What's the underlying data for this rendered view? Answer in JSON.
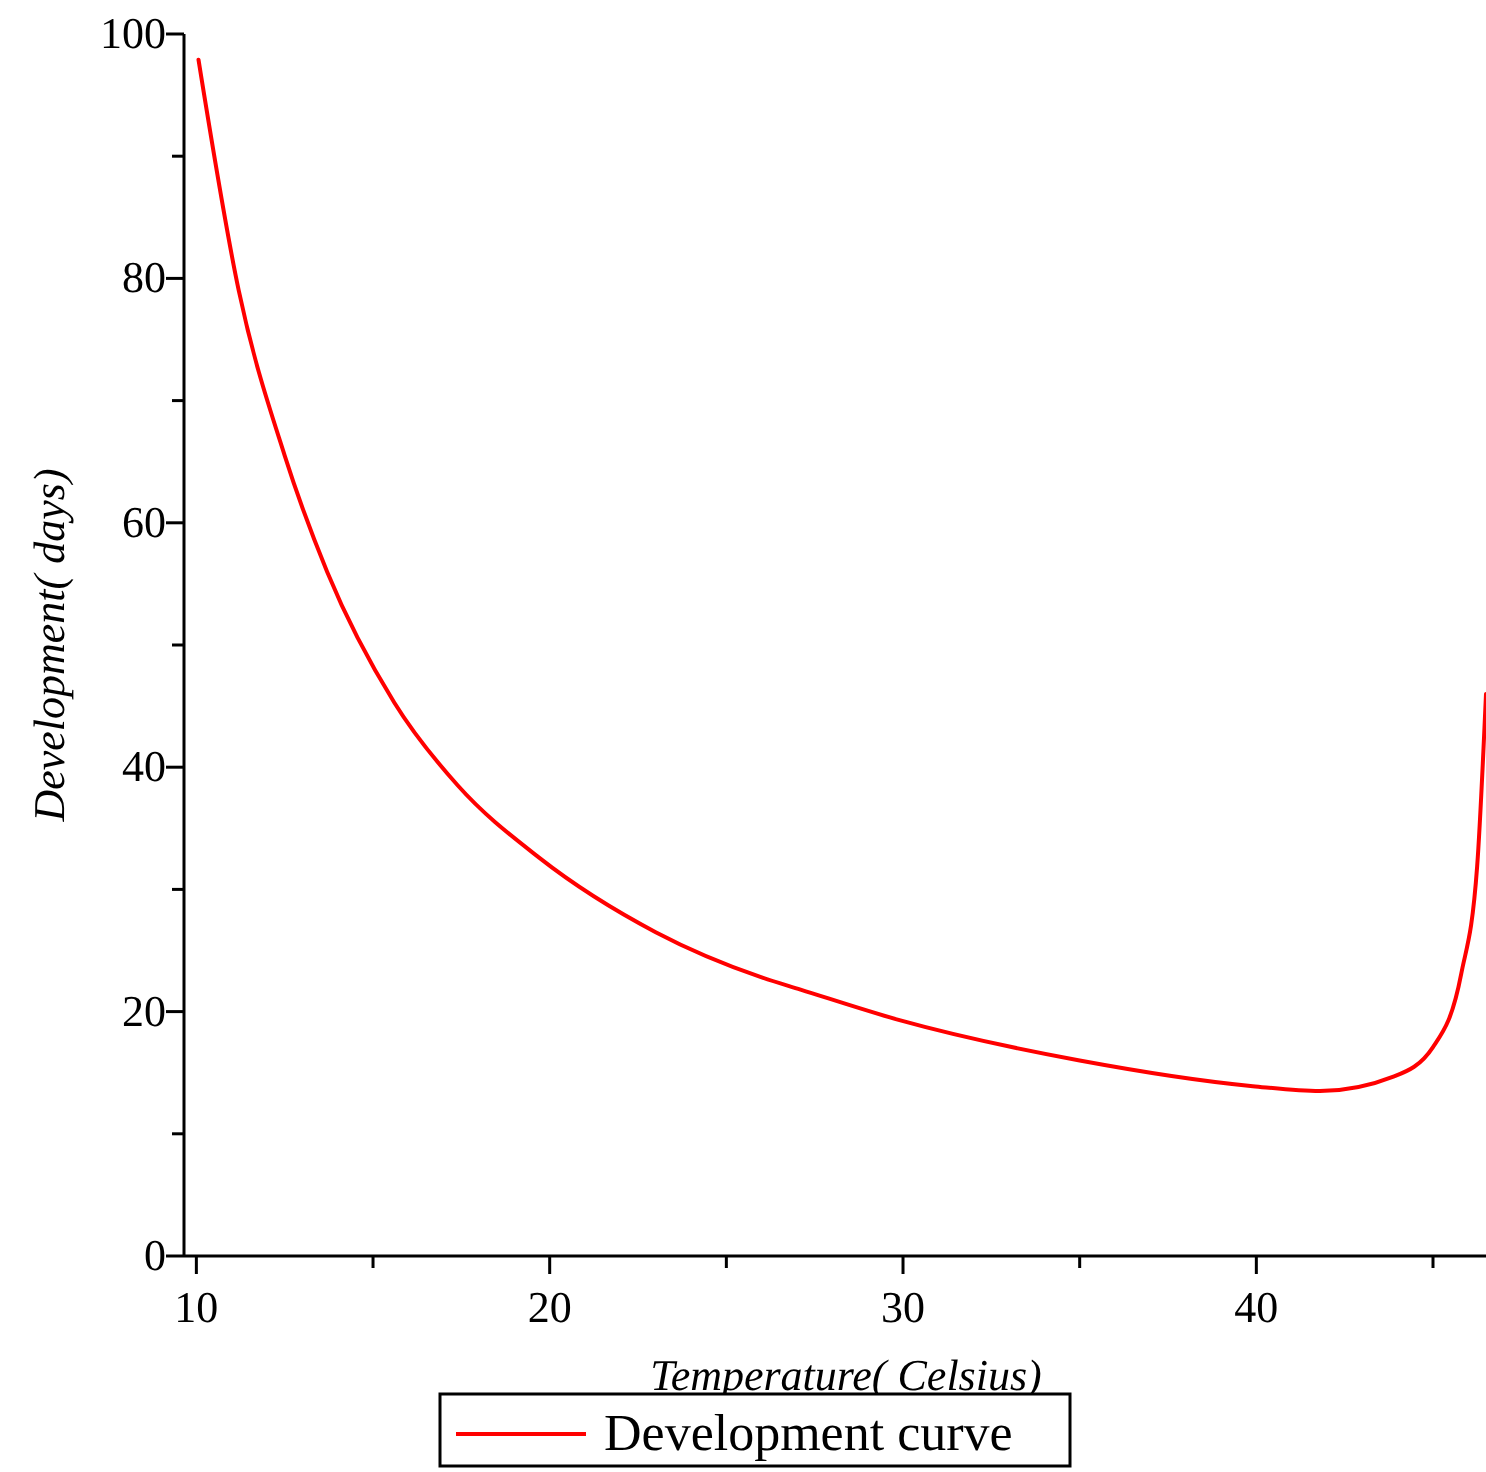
{
  "chart_data": {
    "type": "line",
    "xlabel": "Temperature( Celsius)",
    "ylabel": "Development( days)",
    "xlim": [
      9.65,
      46.5
    ],
    "xticks": [
      10,
      {
        "value": 15,
        "label": null
      },
      20,
      {
        "value": 25,
        "label": null
      },
      30,
      {
        "value": 35,
        "label": null
      },
      40,
      {
        "value": 45,
        "label": null
      }
    ],
    "ylim": [
      0,
      100
    ],
    "yticks": [
      0,
      {
        "value": 10,
        "label": null
      },
      20,
      {
        "value": 30,
        "label": null
      },
      40,
      {
        "value": 50,
        "label": null
      },
      60,
      {
        "value": 70,
        "label": null
      },
      80,
      {
        "value": 90,
        "label": null
      },
      100
    ],
    "legend": "bottom",
    "grid": false,
    "marker": "none",
    "line_style": "solid",
    "series": [
      {
        "name": "Development curve",
        "color": "#ff0000",
        "x": [
          10.06,
          11.2,
          12.5,
          13.7,
          15.6,
          17.4,
          19.7,
          23.0,
          26.0,
          27.1,
          29.9,
          35.0,
          39.9,
          41.8,
          43.9,
          45.0,
          45.8,
          46.25,
          46.5
        ],
        "values": [
          97.9,
          79,
          65.5,
          56,
          45.3,
          38.5,
          32.6,
          26.5,
          22.8,
          21.8,
          19.3,
          16.0,
          13.9,
          13.5,
          14.7,
          17.1,
          23.1,
          31.9,
          46
        ]
      }
    ]
  }
}
